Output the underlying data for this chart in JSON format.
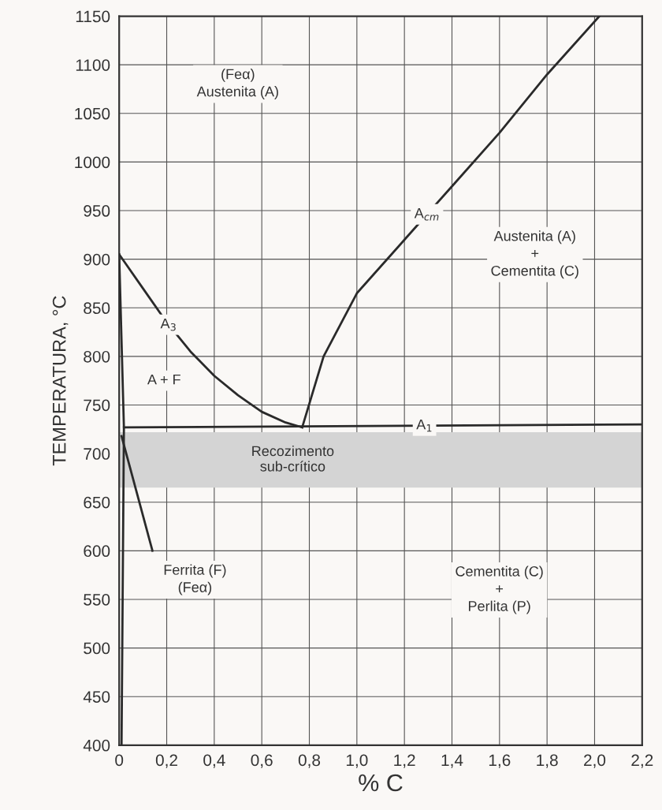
{
  "chart_data": {
    "type": "line",
    "xlabel": "% C",
    "ylabel": "TEMPERATURA, °C",
    "xlim": [
      0,
      2.2
    ],
    "ylim": [
      400,
      1150
    ],
    "xticks": [
      0,
      {
        "value": 0.2,
        "label": "0,2"
      },
      {
        "value": 0.4,
        "label": "0,4"
      },
      {
        "value": 0.6,
        "label": "0,6"
      },
      {
        "value": 0.8,
        "label": "0,8"
      },
      {
        "value": 1.0,
        "label": "1,0"
      },
      {
        "value": 1.2,
        "label": "1,2"
      },
      {
        "value": 1.4,
        "label": "1,4"
      },
      {
        "value": 1.6,
        "label": "1,6"
      },
      {
        "value": 1.8,
        "label": "1,8"
      },
      {
        "value": 2.0,
        "label": "2,0"
      },
      {
        "value": 2.2,
        "label": "2,2"
      }
    ],
    "yticks": [
      400,
      450,
      500,
      550,
      600,
      650,
      700,
      750,
      800,
      850,
      900,
      950,
      1000,
      1050,
      1100,
      1150
    ],
    "grid": true,
    "marker": "none",
    "line_style": "solid",
    "series": [
      {
        "name": "A$_{3}$",
        "color": "#2a2a2a",
        "x": [
          0,
          0.1,
          0.2,
          0.3,
          0.4,
          0.5,
          0.6,
          0.7,
          0.77
        ],
        "values": [
          905,
          870,
          835,
          805,
          780,
          760,
          743,
          732,
          727
        ]
      },
      {
        "name": "A$_{cm}$",
        "color": "#2a2a2a",
        "x": [
          0.77,
          0.86,
          1.0,
          1.2,
          1.4,
          1.6,
          1.8,
          2.02
        ],
        "values": [
          727,
          800,
          865,
          920,
          975,
          1030,
          1090,
          1150
        ]
      },
      {
        "name": "A$_{1}$",
        "color": "#2a2a2a",
        "x": [
          0.02,
          2.2
        ],
        "values": [
          727,
          730
        ]
      },
      {
        "color": "#2a2a2a",
        "x": [
          0,
          0.02,
          0.01
        ],
        "values": [
          905,
          727,
          400
        ]
      },
      {
        "color": "#2a2a2a",
        "x": [
          0.01,
          0.14
        ],
        "values": [
          718,
          600
        ]
      }
    ],
    "bands": [
      {
        "axis": "y",
        "from": 665,
        "to": 722,
        "label": "Recozimento\nsub-crítico",
        "color": "#d4d4d4"
      }
    ],
    "annotations": [
      "(Feα)\nAustenita (A)",
      "A + F",
      "Austenita (A)\n+\nCementita (C)",
      "Ferrita (F)\n(Feα)",
      "Cementita (C)\n+\nPerlita (P)"
    ]
  }
}
